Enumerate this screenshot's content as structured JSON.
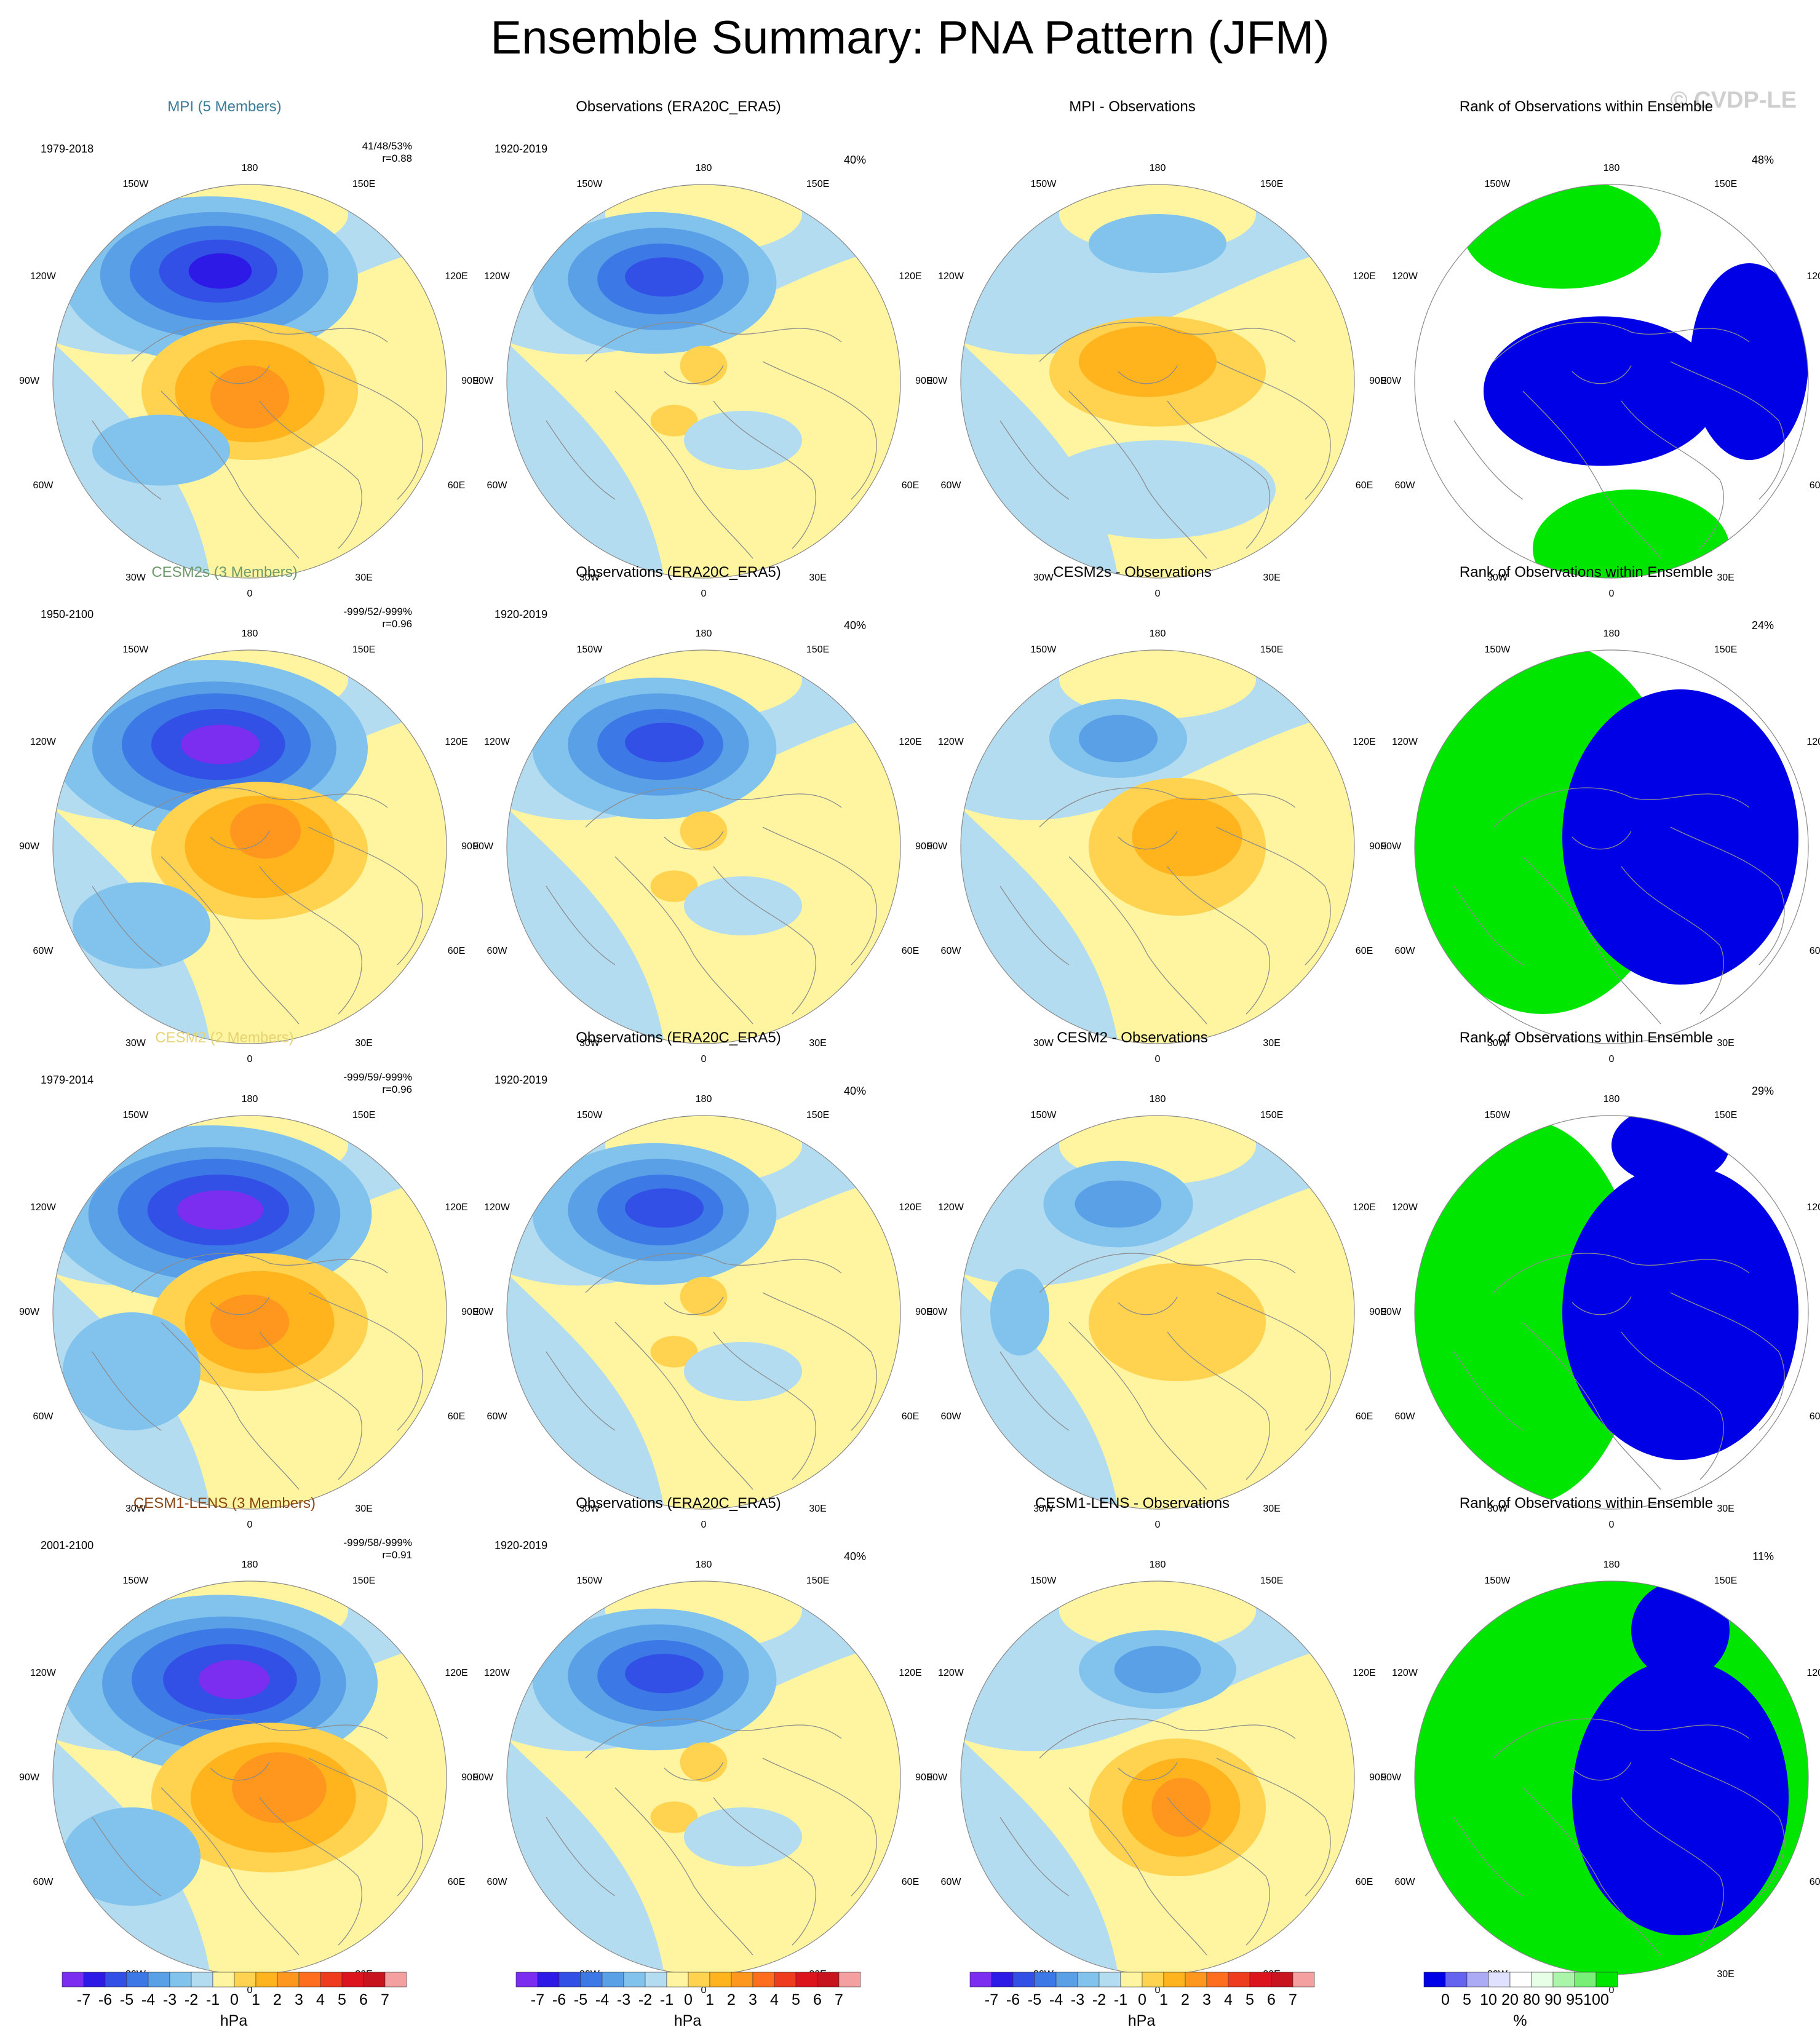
{
  "title": "Ensemble Summary: PNA Pattern (JFM)",
  "watermark": "© CVDP-LE",
  "longitude_labels": {
    "top": "180",
    "b150w": "150W",
    "b150e": "150E",
    "b120w": "120W",
    "b120e": "120E",
    "b90w": "90W",
    "b90e": "90E",
    "b60w": "60W",
    "b60e": "60E",
    "b30w": "30W",
    "b30e": "30E",
    "bottom": "0"
  },
  "rows": [
    {
      "model": {
        "title": "MPI (5 Members)",
        "color": "#3a7d9a",
        "period": "1979-2018",
        "stats1": "41/48/53%",
        "stats2": "r=0.88"
      },
      "obs": {
        "title": "Observations (ERA20C_ERA5)",
        "period": "1920-2019",
        "pct": "40%"
      },
      "diff": {
        "title": "MPI - Observations"
      },
      "rank": {
        "title": "Rank of Observations within Ensemble",
        "pct": "48%"
      }
    },
    {
      "model": {
        "title": "CESM2s (3 Members)",
        "color": "#6b9a6b",
        "period": "1950-2100",
        "stats1": "-999/52/-999%",
        "stats2": "r=0.96"
      },
      "obs": {
        "title": "Observations (ERA20C_ERA5)",
        "period": "1920-2019",
        "pct": "40%"
      },
      "diff": {
        "title": "CESM2s - Observations"
      },
      "rank": {
        "title": "Rank of Observations within Ensemble",
        "pct": "24%"
      }
    },
    {
      "model": {
        "title": "CESM2 (2 Members)",
        "color": "#e6d373",
        "period": "1979-2014",
        "stats1": "-999/59/-999%",
        "stats2": "r=0.96"
      },
      "obs": {
        "title": "Observations (ERA20C_ERA5)",
        "period": "1920-2019",
        "pct": "40%"
      },
      "diff": {
        "title": "CESM2 - Observations"
      },
      "rank": {
        "title": "Rank of Observations within Ensemble",
        "pct": "29%"
      }
    },
    {
      "model": {
        "title": "CESM1-LENS (3 Members)",
        "color": "#8b4513",
        "period": "2001-2100",
        "stats1": "-999/58/-999%",
        "stats2": "r=0.91"
      },
      "obs": {
        "title": "Observations (ERA20C_ERA5)",
        "period": "1920-2019",
        "pct": "40%"
      },
      "diff": {
        "title": "CESM1-LENS - Observations"
      },
      "rank": {
        "title": "Rank of Observations within Ensemble",
        "pct": "11%"
      }
    }
  ],
  "colorbar_hpa": {
    "unit": "hPa",
    "colors": [
      "#7b2df0",
      "#2d1ae6",
      "#3250e6",
      "#3c78e6",
      "#5aa0e6",
      "#82c3ee",
      "#b4dcf0",
      "#fff5a0",
      "#ffd250",
      "#ffb41e",
      "#ff961e",
      "#ff6e1e",
      "#f03c1e",
      "#dc141e",
      "#c8141e",
      "#f5a0a0"
    ],
    "ticks": [
      "-7",
      "-6",
      "-5",
      "-4",
      "-3",
      "-2",
      "-1",
      "0",
      "1",
      "2",
      "3",
      "4",
      "5",
      "6",
      "7"
    ]
  },
  "colorbar_rank": {
    "unit": "%",
    "colors": [
      "#0000e6",
      "#6464f0",
      "#aaaaf5",
      "#e0e0ff",
      "#ffffff",
      "#e6ffe6",
      "#aaf5aa",
      "#78f078",
      "#00e600"
    ],
    "ticks": [
      "0",
      "5",
      "10",
      "20",
      "80",
      "90",
      "95",
      "100"
    ]
  },
  "colors": {
    "land_line": "#8c8c8c",
    "neg_light": "#b4dcf0",
    "pos_light": "#fff5a0",
    "rank_low": "#0000e6",
    "rank_high": "#00e600",
    "rank_mid": "#ffffff"
  }
}
